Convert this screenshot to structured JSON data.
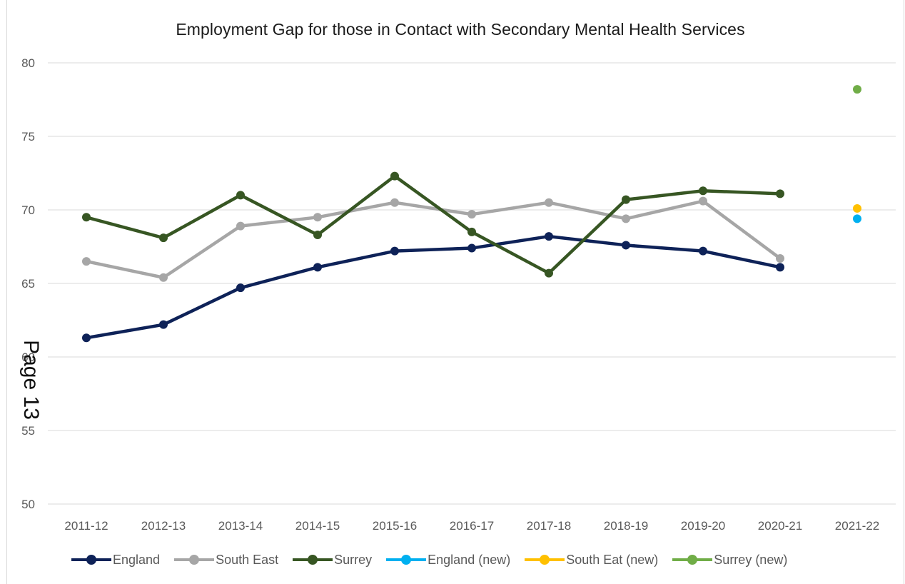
{
  "chart_data": {
    "type": "line",
    "title": "Employment  Gap for those in Contact with Secondary Mental Health Services",
    "xlabel": "",
    "ylabel": "",
    "ylim": [
      50,
      80
    ],
    "yticks": [
      50,
      55,
      60,
      65,
      70,
      75,
      80
    ],
    "ytick_labels": [
      "50",
      "55",
      "60",
      "65",
      "70",
      "75",
      "80"
    ],
    "categories": [
      "2011-12",
      "2012-13",
      "2013-14",
      "2014-15",
      "2015-16",
      "2016-17",
      "2017-18",
      "2018-19",
      "2019-20",
      "2020-21",
      "2021-22"
    ],
    "grid": true,
    "legend_position": "bottom",
    "series": [
      {
        "name": "England",
        "color": "#0e2258",
        "style": "line",
        "values": [
          61.3,
          62.2,
          64.7,
          66.1,
          67.2,
          67.4,
          68.2,
          67.6,
          67.2,
          66.1,
          null
        ]
      },
      {
        "name": "South East",
        "color": "#a6a6a6",
        "style": "line",
        "values": [
          66.5,
          65.4,
          68.9,
          69.5,
          70.5,
          69.7,
          70.5,
          69.4,
          70.6,
          66.7,
          null
        ]
      },
      {
        "name": "Surrey",
        "color": "#375623",
        "style": "line",
        "values": [
          69.5,
          68.1,
          71.0,
          68.3,
          72.3,
          68.5,
          65.7,
          70.7,
          71.3,
          71.1,
          null
        ]
      },
      {
        "name": "England (new)",
        "color": "#00b0f0",
        "style": "point",
        "values": [
          null,
          null,
          null,
          null,
          null,
          null,
          null,
          null,
          null,
          null,
          69.4
        ]
      },
      {
        "name": "South Eat (new)",
        "color": "#ffc000",
        "style": "point",
        "values": [
          null,
          null,
          null,
          null,
          null,
          null,
          null,
          null,
          null,
          null,
          70.1
        ]
      },
      {
        "name": "Surrey (new)",
        "color": "#70ad47",
        "style": "point",
        "values": [
          null,
          null,
          null,
          null,
          null,
          null,
          null,
          null,
          null,
          null,
          78.2
        ]
      }
    ]
  },
  "page_stamp": "Page 13"
}
